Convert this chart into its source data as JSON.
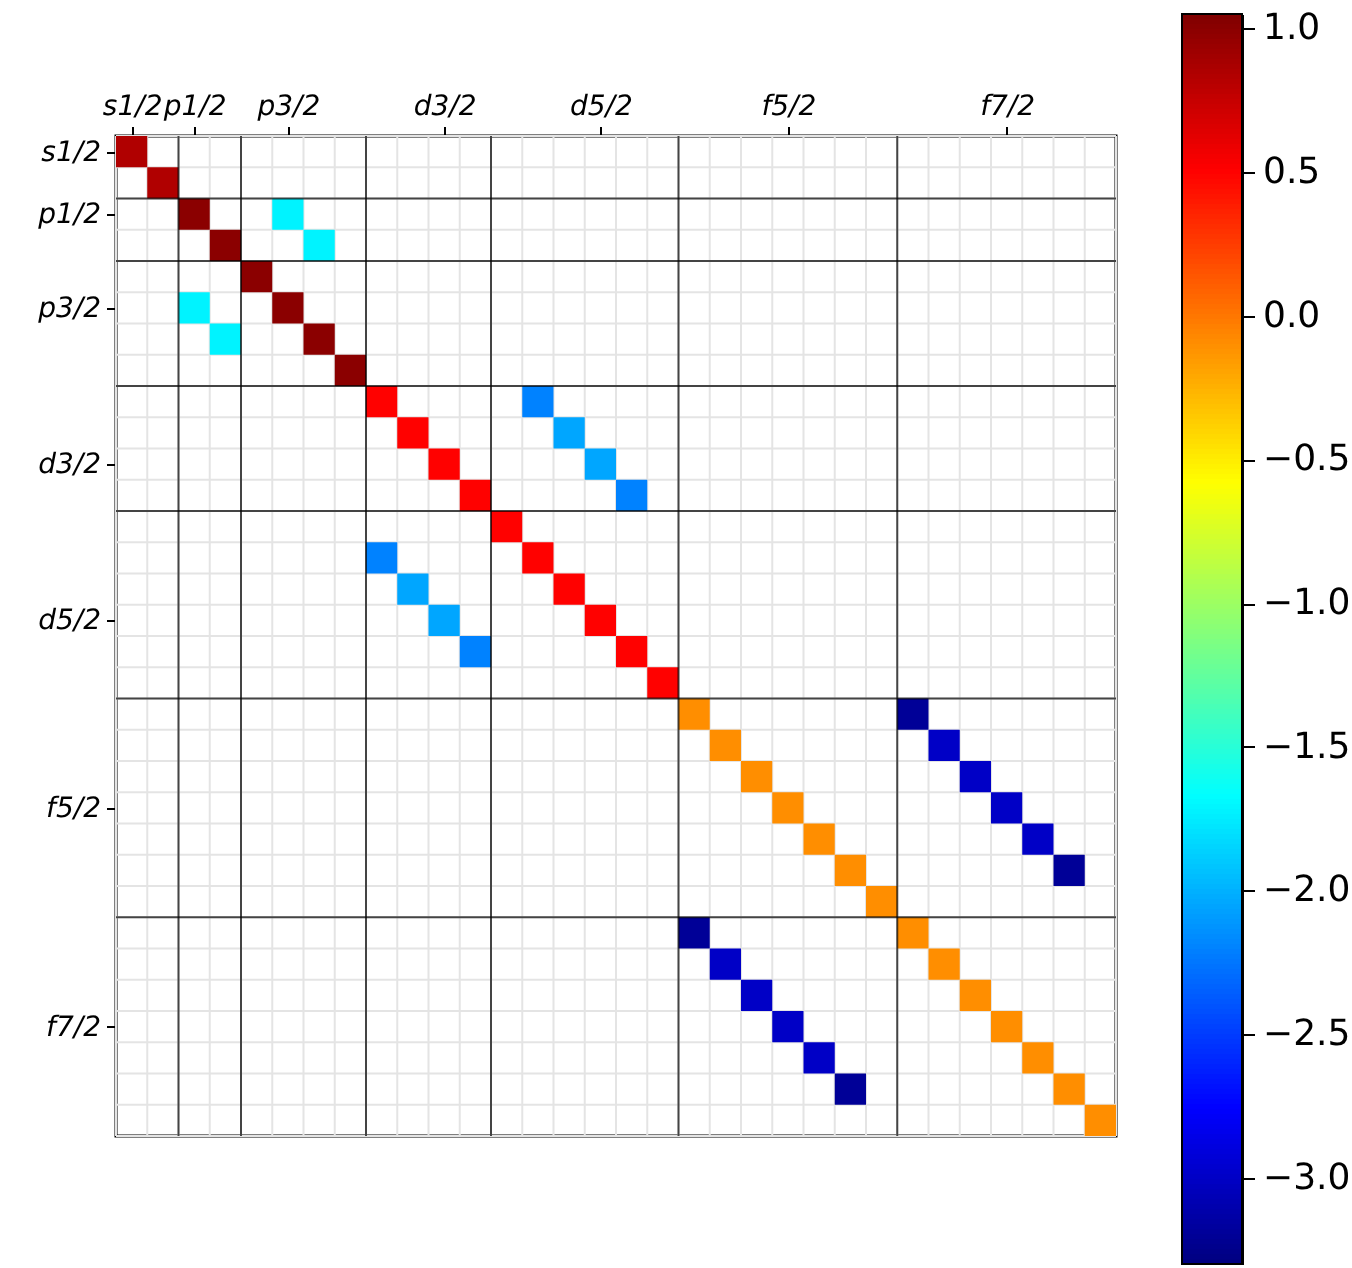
{
  "chart_data": {
    "type": "heatmap",
    "categories": [
      "s1/2",
      null,
      "p1/2",
      null,
      null,
      "p3/2",
      null,
      null,
      null,
      null,
      "d3/2",
      null,
      null,
      null,
      null,
      "d5/2",
      null,
      null,
      null,
      null,
      null,
      "f5/2",
      null,
      null,
      null,
      null,
      null,
      null,
      "f7/2",
      null,
      null,
      null
    ],
    "y_categories": [
      "s1/2",
      null,
      "p1/2",
      null,
      null,
      "p3/2",
      null,
      null,
      null,
      null,
      "d3/2",
      null,
      null,
      null,
      null,
      "d5/2",
      null,
      null,
      null,
      null,
      null,
      "f5/2",
      null,
      null,
      null,
      null,
      null,
      null,
      "f7/2",
      null,
      null,
      null
    ],
    "cells": [
      [
        0.84,
        null,
        null,
        null,
        null,
        null,
        null,
        null,
        null,
        null,
        null,
        null,
        null,
        null,
        null,
        null,
        null,
        null,
        null,
        null,
        null,
        null,
        null,
        null,
        null,
        null,
        null,
        null,
        null,
        null,
        null,
        null
      ],
      [
        null,
        0.84,
        null,
        null,
        null,
        null,
        null,
        null,
        null,
        null,
        null,
        null,
        null,
        null,
        null,
        null,
        null,
        null,
        null,
        null,
        null,
        null,
        null,
        null,
        null,
        null,
        null,
        null,
        null,
        null,
        null,
        null
      ],
      [
        null,
        null,
        1.0,
        null,
        null,
        -1.72,
        null,
        null,
        null,
        null,
        null,
        null,
        null,
        null,
        null,
        null,
        null,
        null,
        null,
        null,
        null,
        null,
        null,
        null,
        null,
        null,
        null,
        null,
        null,
        null,
        null,
        null
      ],
      [
        null,
        null,
        null,
        1.0,
        null,
        null,
        -1.72,
        null,
        null,
        null,
        null,
        null,
        null,
        null,
        null,
        null,
        null,
        null,
        null,
        null,
        null,
        null,
        null,
        null,
        null,
        null,
        null,
        null,
        null,
        null,
        null,
        null
      ],
      [
        null,
        null,
        null,
        null,
        1.0,
        null,
        null,
        null,
        null,
        null,
        null,
        null,
        null,
        null,
        null,
        null,
        null,
        null,
        null,
        null,
        null,
        null,
        null,
        null,
        null,
        null,
        null,
        null,
        null,
        null,
        null,
        null
      ],
      [
        null,
        null,
        -1.72,
        null,
        null,
        1.0,
        null,
        null,
        null,
        null,
        null,
        null,
        null,
        null,
        null,
        null,
        null,
        null,
        null,
        null,
        null,
        null,
        null,
        null,
        null,
        null,
        null,
        null,
        null,
        null,
        null,
        null
      ],
      [
        null,
        null,
        null,
        -1.72,
        null,
        null,
        1.0,
        null,
        null,
        null,
        null,
        null,
        null,
        null,
        null,
        null,
        null,
        null,
        null,
        null,
        null,
        null,
        null,
        null,
        null,
        null,
        null,
        null,
        null,
        null,
        null,
        null
      ],
      [
        null,
        null,
        null,
        null,
        null,
        null,
        null,
        1.0,
        null,
        null,
        null,
        null,
        null,
        null,
        null,
        null,
        null,
        null,
        null,
        null,
        null,
        null,
        null,
        null,
        null,
        null,
        null,
        null,
        null,
        null,
        null,
        null
      ],
      [
        null,
        null,
        null,
        null,
        null,
        null,
        null,
        null,
        0.5,
        null,
        null,
        null,
        null,
        -2.2,
        null,
        null,
        null,
        null,
        null,
        null,
        null,
        null,
        null,
        null,
        null,
        null,
        null,
        null,
        null,
        null,
        null,
        null
      ],
      [
        null,
        null,
        null,
        null,
        null,
        null,
        null,
        null,
        null,
        0.5,
        null,
        null,
        null,
        null,
        -2.05,
        null,
        null,
        null,
        null,
        null,
        null,
        null,
        null,
        null,
        null,
        null,
        null,
        null,
        null,
        null,
        null,
        null
      ],
      [
        null,
        null,
        null,
        null,
        null,
        null,
        null,
        null,
        null,
        null,
        0.5,
        null,
        null,
        null,
        null,
        -2.05,
        null,
        null,
        null,
        null,
        null,
        null,
        null,
        null,
        null,
        null,
        null,
        null,
        null,
        null,
        null,
        null
      ],
      [
        null,
        null,
        null,
        null,
        null,
        null,
        null,
        null,
        null,
        null,
        null,
        0.5,
        null,
        null,
        null,
        null,
        -2.2,
        null,
        null,
        null,
        null,
        null,
        null,
        null,
        null,
        null,
        null,
        null,
        null,
        null,
        null,
        null
      ],
      [
        null,
        null,
        null,
        null,
        null,
        null,
        null,
        null,
        null,
        null,
        null,
        null,
        0.5,
        null,
        null,
        null,
        null,
        null,
        null,
        null,
        null,
        null,
        null,
        null,
        null,
        null,
        null,
        null,
        null,
        null,
        null,
        null
      ],
      [
        null,
        null,
        null,
        null,
        null,
        null,
        null,
        null,
        -2.2,
        null,
        null,
        null,
        null,
        0.5,
        null,
        null,
        null,
        null,
        null,
        null,
        null,
        null,
        null,
        null,
        null,
        null,
        null,
        null,
        null,
        null,
        null,
        null
      ],
      [
        null,
        null,
        null,
        null,
        null,
        null,
        null,
        null,
        null,
        -2.05,
        null,
        null,
        null,
        null,
        0.5,
        null,
        null,
        null,
        null,
        null,
        null,
        null,
        null,
        null,
        null,
        null,
        null,
        null,
        null,
        null,
        null,
        null
      ],
      [
        null,
        null,
        null,
        null,
        null,
        null,
        null,
        null,
        null,
        null,
        -2.05,
        null,
        null,
        null,
        null,
        0.5,
        null,
        null,
        null,
        null,
        null,
        null,
        null,
        null,
        null,
        null,
        null,
        null,
        null,
        null,
        null,
        null
      ],
      [
        null,
        null,
        null,
        null,
        null,
        null,
        null,
        null,
        null,
        null,
        null,
        -2.2,
        null,
        null,
        null,
        null,
        0.5,
        null,
        null,
        null,
        null,
        null,
        null,
        null,
        null,
        null,
        null,
        null,
        null,
        null,
        null,
        null
      ],
      [
        null,
        null,
        null,
        null,
        null,
        null,
        null,
        null,
        null,
        null,
        null,
        null,
        null,
        null,
        null,
        null,
        null,
        0.5,
        null,
        null,
        null,
        null,
        null,
        null,
        null,
        null,
        null,
        null,
        null,
        null,
        null,
        null
      ],
      [
        null,
        null,
        null,
        null,
        null,
        null,
        null,
        null,
        null,
        null,
        null,
        null,
        null,
        null,
        null,
        null,
        null,
        null,
        -0.1,
        null,
        null,
        null,
        null,
        null,
        null,
        -3.2,
        null,
        null,
        null,
        null,
        null,
        null
      ],
      [
        null,
        null,
        null,
        null,
        null,
        null,
        null,
        null,
        null,
        null,
        null,
        null,
        null,
        null,
        null,
        null,
        null,
        null,
        null,
        -0.1,
        null,
        null,
        null,
        null,
        null,
        null,
        -3.0,
        null,
        null,
        null,
        null,
        null
      ],
      [
        null,
        null,
        null,
        null,
        null,
        null,
        null,
        null,
        null,
        null,
        null,
        null,
        null,
        null,
        null,
        null,
        null,
        null,
        null,
        null,
        -0.1,
        null,
        null,
        null,
        null,
        null,
        null,
        -3.0,
        null,
        null,
        null,
        null
      ],
      [
        null,
        null,
        null,
        null,
        null,
        null,
        null,
        null,
        null,
        null,
        null,
        null,
        null,
        null,
        null,
        null,
        null,
        null,
        null,
        null,
        null,
        -0.1,
        null,
        null,
        null,
        null,
        null,
        null,
        -3.0,
        null,
        null,
        null
      ],
      [
        null,
        null,
        null,
        null,
        null,
        null,
        null,
        null,
        null,
        null,
        null,
        null,
        null,
        null,
        null,
        null,
        null,
        null,
        null,
        null,
        null,
        null,
        -0.1,
        null,
        null,
        null,
        null,
        null,
        null,
        -3.0,
        null,
        null
      ],
      [
        null,
        null,
        null,
        null,
        null,
        null,
        null,
        null,
        null,
        null,
        null,
        null,
        null,
        null,
        null,
        null,
        null,
        null,
        null,
        null,
        null,
        null,
        null,
        -0.1,
        null,
        null,
        null,
        null,
        null,
        null,
        -3.2,
        null
      ],
      [
        null,
        null,
        null,
        null,
        null,
        null,
        null,
        null,
        null,
        null,
        null,
        null,
        null,
        null,
        null,
        null,
        null,
        null,
        null,
        null,
        null,
        null,
        null,
        null,
        -0.1,
        null,
        null,
        null,
        null,
        null,
        null,
        null
      ],
      [
        null,
        null,
        null,
        null,
        null,
        null,
        null,
        null,
        null,
        null,
        null,
        null,
        null,
        null,
        null,
        null,
        null,
        null,
        -3.2,
        null,
        null,
        null,
        null,
        null,
        null,
        -0.1,
        null,
        null,
        null,
        null,
        null,
        null
      ],
      [
        null,
        null,
        null,
        null,
        null,
        null,
        null,
        null,
        null,
        null,
        null,
        null,
        null,
        null,
        null,
        null,
        null,
        null,
        null,
        -3.0,
        null,
        null,
        null,
        null,
        null,
        null,
        -0.1,
        null,
        null,
        null,
        null,
        null
      ],
      [
        null,
        null,
        null,
        null,
        null,
        null,
        null,
        null,
        null,
        null,
        null,
        null,
        null,
        null,
        null,
        null,
        null,
        null,
        null,
        null,
        -3.0,
        null,
        null,
        null,
        null,
        null,
        null,
        -0.1,
        null,
        null,
        null,
        null
      ],
      [
        null,
        null,
        null,
        null,
        null,
        null,
        null,
        null,
        null,
        null,
        null,
        null,
        null,
        null,
        null,
        null,
        null,
        null,
        null,
        null,
        null,
        -3.0,
        null,
        null,
        null,
        null,
        null,
        null,
        -0.1,
        null,
        null,
        null
      ],
      [
        null,
        null,
        null,
        null,
        null,
        null,
        null,
        null,
        null,
        null,
        null,
        null,
        null,
        null,
        null,
        null,
        null,
        null,
        null,
        null,
        null,
        null,
        -3.0,
        null,
        null,
        null,
        null,
        null,
        null,
        -0.1,
        null,
        null
      ],
      [
        null,
        null,
        null,
        null,
        null,
        null,
        null,
        null,
        null,
        null,
        null,
        null,
        null,
        null,
        null,
        null,
        null,
        null,
        null,
        null,
        null,
        null,
        null,
        -3.2,
        null,
        null,
        null,
        null,
        null,
        null,
        -0.1,
        null
      ],
      [
        null,
        null,
        null,
        null,
        null,
        null,
        null,
        null,
        null,
        null,
        null,
        null,
        null,
        null,
        null,
        null,
        null,
        null,
        null,
        null,
        null,
        null,
        null,
        null,
        null,
        null,
        null,
        null,
        null,
        null,
        null,
        -0.1
      ]
    ],
    "clim": [
      -3.3,
      1.05
    ],
    "cticks": [
      {
        "value": -3,
        "label": "−3.0"
      },
      {
        "value": -2.5,
        "label": "−2.5"
      },
      {
        "value": -2,
        "label": "−2.0"
      },
      {
        "value": -1.5,
        "label": "−1.5"
      },
      {
        "value": -1,
        "label": "−1.0"
      },
      {
        "value": -0.5,
        "label": "−0.5"
      },
      {
        "value": 0,
        "label": "0.0"
      },
      {
        "value": 0.5,
        "label": "0.5"
      },
      {
        "value": 1,
        "label": "1.0"
      }
    ],
    "grid": true
  }
}
